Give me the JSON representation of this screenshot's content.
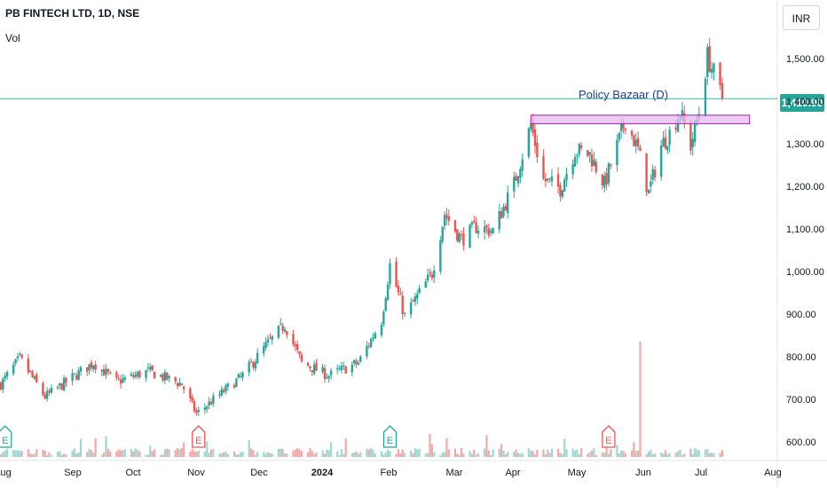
{
  "header": {
    "title": "PB FINTECH LTD, 1D, NSE",
    "volume_label": "Vol"
  },
  "currency_button": {
    "label": "INR"
  },
  "last_price": {
    "label": "1,410.90",
    "value": 1410.9
  },
  "annotation": {
    "label": "Policy Bazaar (D)"
  },
  "colors": {
    "up": "#26a69a",
    "down": "#ef5350",
    "zone_fill": "#e7b8ee",
    "zone_border": "#9c27b0",
    "price_line": "#26a69a",
    "volume_spike": "#80cbc4"
  },
  "chart_data": {
    "type": "candlestick",
    "title": "PB FINTECH LTD, 1D, NSE",
    "y_axis": {
      "unit": "INR",
      "ylim": [
        580,
        1650
      ],
      "ticks": [
        600,
        700,
        800,
        900,
        1000,
        1100,
        1200,
        1300,
        1400,
        1500
      ],
      "tick_labels": [
        "600.00",
        "700.00",
        "800.00",
        "900.00",
        "1,000.00",
        "1,100.00",
        "1,200.00",
        "1,300.00",
        "1,400.00",
        "1,500.00"
      ]
    },
    "x_axis": {
      "ticks": [
        "Aug",
        "Sep",
        "Oct",
        "Nov",
        "Dec",
        "2024",
        "Feb",
        "Mar",
        "Apr",
        "May",
        "Jun",
        "Jul",
        "Aug"
      ],
      "bold_ticks": [
        "2024"
      ]
    },
    "price_anchors": [
      {
        "date": "2023-08-01",
        "price": 740
      },
      {
        "date": "2023-08-10",
        "price": 800
      },
      {
        "date": "2023-08-22",
        "price": 710
      },
      {
        "date": "2023-09-14",
        "price": 790
      },
      {
        "date": "2023-09-25",
        "price": 745
      },
      {
        "date": "2023-10-10",
        "price": 770
      },
      {
        "date": "2023-10-26",
        "price": 740
      },
      {
        "date": "2023-11-02",
        "price": 670
      },
      {
        "date": "2023-11-24",
        "price": 760
      },
      {
        "date": "2023-12-05",
        "price": 830
      },
      {
        "date": "2023-12-14",
        "price": 880
      },
      {
        "date": "2023-12-22",
        "price": 790
      },
      {
        "date": "2024-01-04",
        "price": 760
      },
      {
        "date": "2024-01-18",
        "price": 790
      },
      {
        "date": "2024-01-29",
        "price": 890
      },
      {
        "date": "2024-02-02",
        "price": 1020
      },
      {
        "date": "2024-02-09",
        "price": 900
      },
      {
        "date": "2024-02-22",
        "price": 1000
      },
      {
        "date": "2024-02-28",
        "price": 1140
      },
      {
        "date": "2024-03-07",
        "price": 1080
      },
      {
        "date": "2024-03-14",
        "price": 1110
      },
      {
        "date": "2024-03-22",
        "price": 1100
      },
      {
        "date": "2024-04-01",
        "price": 1210
      },
      {
        "date": "2024-04-09",
        "price": 1350
      },
      {
        "date": "2024-04-15",
        "price": 1220
      },
      {
        "date": "2024-04-23",
        "price": 1200
      },
      {
        "date": "2024-04-30",
        "price": 1290
      },
      {
        "date": "2024-05-07",
        "price": 1280
      },
      {
        "date": "2024-05-14",
        "price": 1210
      },
      {
        "date": "2024-05-20",
        "price": 1300
      },
      {
        "date": "2024-05-24",
        "price": 1360
      },
      {
        "date": "2024-05-30",
        "price": 1290
      },
      {
        "date": "2024-06-04",
        "price": 1190
      },
      {
        "date": "2024-06-10",
        "price": 1300
      },
      {
        "date": "2024-06-14",
        "price": 1330
      },
      {
        "date": "2024-06-19",
        "price": 1380
      },
      {
        "date": "2024-06-24",
        "price": 1300
      },
      {
        "date": "2024-06-28",
        "price": 1380
      },
      {
        "date": "2024-07-02",
        "price": 1510
      },
      {
        "date": "2024-07-05",
        "price": 1470
      },
      {
        "date": "2024-07-09",
        "price": 1411
      }
    ],
    "notable_high": {
      "date": "2024-07-02",
      "price": 1540
    },
    "support_zone": {
      "low": 1352,
      "high": 1372,
      "start": "2024-04-09",
      "end": "2024-07-22"
    },
    "current_price": 1410.9,
    "volume_spike": {
      "date": "2024-05-31",
      "relative_height": 0.9
    },
    "earnings_markers": [
      {
        "date": "2023-08-03",
        "label": "E",
        "style": "up"
      },
      {
        "date": "2023-11-03",
        "label": "E",
        "style": "down"
      },
      {
        "date": "2024-02-02",
        "label": "E",
        "style": "up"
      },
      {
        "date": "2024-05-16",
        "label": "E",
        "style": "down"
      }
    ]
  }
}
